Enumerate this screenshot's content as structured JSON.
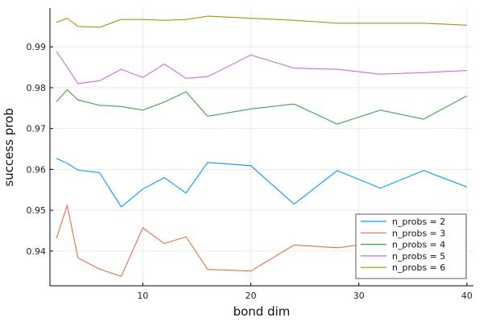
{
  "chart_data": {
    "type": "line",
    "title": "",
    "xlabel": "bond dim",
    "ylabel": "success prob",
    "xlim": [
      1.4,
      40.6
    ],
    "ylim": [
      0.9315,
      0.9995
    ],
    "xticks": [
      10,
      20,
      30,
      40
    ],
    "yticks": [
      0.94,
      0.95,
      0.96,
      0.97,
      0.98,
      0.99
    ],
    "ytick_labels": [
      "0.94",
      "0.95",
      "0.96",
      "0.97",
      "0.98",
      "0.99"
    ],
    "grid": true,
    "legend_position": "bottom-right",
    "x": [
      2,
      3,
      4,
      6,
      8,
      10,
      12,
      14,
      16,
      20,
      24,
      28,
      32,
      36,
      40
    ],
    "series": [
      {
        "name": "n_probs = 2",
        "color": "#009AFA",
        "values": [
          0.9627,
          0.9615,
          0.9598,
          0.9592,
          0.9508,
          0.9552,
          0.958,
          0.9542,
          0.9617,
          0.9609,
          0.9515,
          0.9597,
          0.9554,
          0.9597,
          0.9557
        ]
      },
      {
        "name": "n_probs = 3",
        "color": "#E36F47",
        "values": [
          0.9431,
          0.9512,
          0.9383,
          0.9356,
          0.9338,
          0.9457,
          0.9418,
          0.9435,
          0.9355,
          0.9351,
          0.9415,
          0.9408,
          0.9422,
          0.9425,
          0.9425
        ]
      },
      {
        "name": "n_probs = 4",
        "color": "#3EA44E",
        "values": [
          0.9766,
          0.9795,
          0.977,
          0.9757,
          0.9754,
          0.9745,
          0.9765,
          0.979,
          0.973,
          0.9748,
          0.976,
          0.9711,
          0.9745,
          0.9723,
          0.978
        ]
      },
      {
        "name": "n_probs = 5",
        "color": "#C371D2",
        "values": [
          0.9889,
          0.985,
          0.981,
          0.9817,
          0.9845,
          0.9825,
          0.9858,
          0.9823,
          0.9827,
          0.988,
          0.9848,
          0.9845,
          0.9833,
          0.9837,
          0.9842
        ]
      },
      {
        "name": "n_probs = 6",
        "color": "#AC8D18",
        "values": [
          0.996,
          0.997,
          0.995,
          0.9948,
          0.9967,
          0.9967,
          0.9965,
          0.9967,
          0.9975,
          0.997,
          0.9965,
          0.9958,
          0.9958,
          0.9958,
          0.9953
        ]
      }
    ]
  }
}
